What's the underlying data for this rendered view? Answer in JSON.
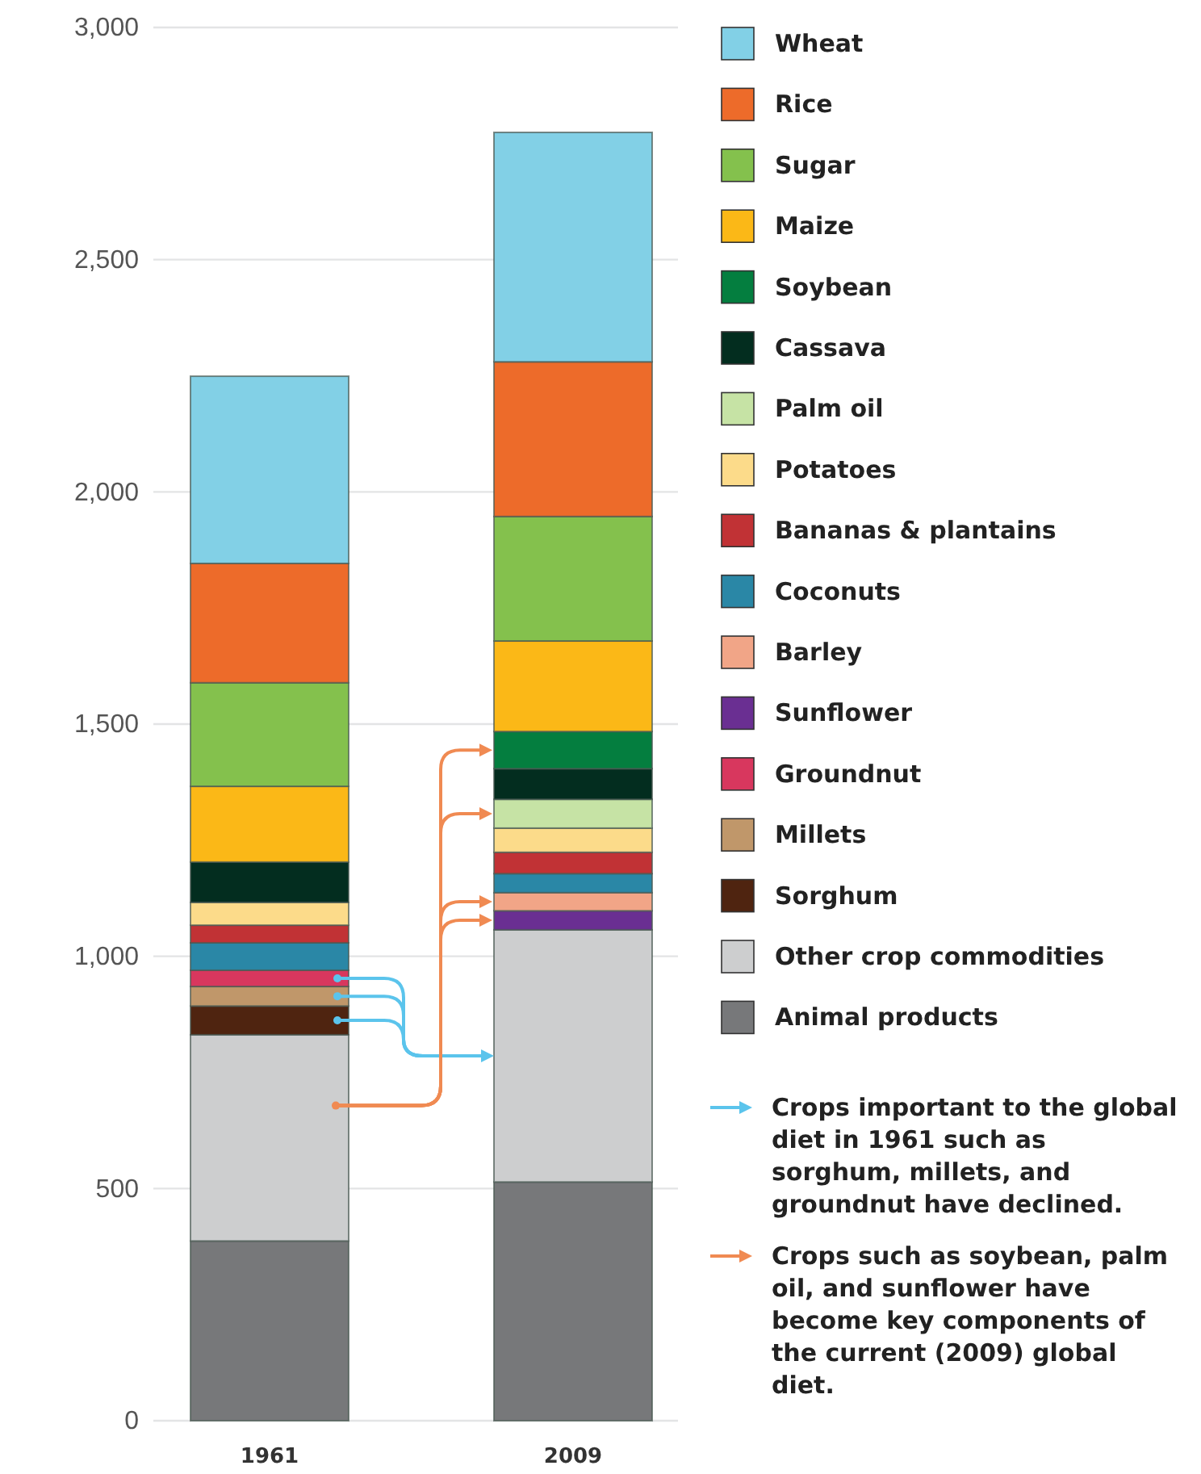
{
  "chart_data": {
    "type": "bar",
    "stacked": true,
    "categories": [
      "1961",
      "2009"
    ],
    "series": [
      {
        "name": "Animal products",
        "color": "#77787a",
        "values": [
          387,
          514
        ]
      },
      {
        "name": "Other crop commodities",
        "color": "#cdcecf",
        "values": [
          444,
          543
        ]
      },
      {
        "name": "Sorghum",
        "color": "#4f2410",
        "values": [
          62,
          0
        ]
      },
      {
        "name": "Millets",
        "color": "#c0976a",
        "values": [
          42,
          0
        ]
      },
      {
        "name": "Groundnut",
        "color": "#d8375e",
        "values": [
          35,
          0
        ]
      },
      {
        "name": "Sunflower",
        "color": "#6a2f92",
        "values": [
          0,
          41
        ]
      },
      {
        "name": "Barley",
        "color": "#f1a587",
        "values": [
          0,
          39
        ]
      },
      {
        "name": "Coconuts",
        "color": "#2a87a6",
        "values": [
          59,
          41
        ]
      },
      {
        "name": "Bananas & plantains",
        "color": "#c13235",
        "values": [
          38,
          46
        ]
      },
      {
        "name": "Potatoes",
        "color": "#fcdb8a",
        "values": [
          49,
          52
        ]
      },
      {
        "name": "Palm oil",
        "color": "#c6e3a5",
        "values": [
          0,
          62
        ]
      },
      {
        "name": "Cassava",
        "color": "#032d1f",
        "values": [
          87,
          66
        ]
      },
      {
        "name": "Soybean",
        "color": "#047e3f",
        "values": [
          0,
          80
        ]
      },
      {
        "name": "Maize",
        "color": "#fbb817",
        "values": [
          163,
          195
        ]
      },
      {
        "name": "Sugar",
        "color": "#84c14d",
        "values": [
          223,
          268
        ]
      },
      {
        "name": "Rice",
        "color": "#ed6b2a",
        "values": [
          257,
          333
        ]
      },
      {
        "name": "Wheat",
        "color": "#82d0e6",
        "values": [
          403,
          494
        ]
      }
    ],
    "ylim": [
      0,
      3000
    ],
    "yticks": [
      0,
      500,
      {
        "value": 1000,
        "label": "1,000"
      },
      {
        "value": 1500,
        "label": "1,500"
      },
      {
        "value": 2000,
        "label": "2,000"
      },
      {
        "value": 2500,
        "label": "2,500"
      },
      {
        "value": 3000,
        "label": "3,000"
      }
    ],
    "grid": "y",
    "legend": "right",
    "annotations": [
      "Crops important to the global diet in 1961 such as sorghum, millets, and groundnut have declined.",
      "Crops such as soybean, palm oil, and sunflower have become key components of the current (2009) global diet."
    ]
  }
}
